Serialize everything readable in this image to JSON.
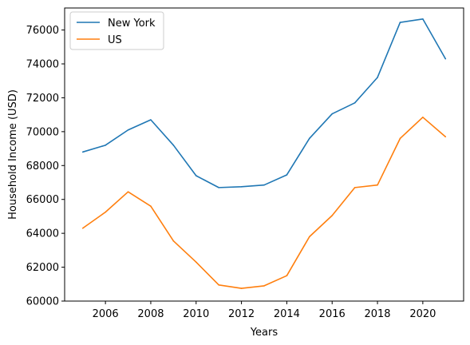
{
  "chart_data": {
    "type": "line",
    "title": "",
    "xlabel": "Years",
    "ylabel": "Household Income (USD)",
    "x": [
      2005,
      2006,
      2007,
      2008,
      2009,
      2010,
      2011,
      2012,
      2013,
      2014,
      2015,
      2016,
      2017,
      2018,
      2019,
      2020,
      2021
    ],
    "xlim": [
      2004.2,
      2021.8
    ],
    "ylim": [
      60000,
      77300
    ],
    "xticks": [
      2006,
      2008,
      2010,
      2012,
      2014,
      2016,
      2018,
      2020
    ],
    "yticks": [
      60000,
      62000,
      64000,
      66000,
      68000,
      70000,
      72000,
      74000,
      76000
    ],
    "grid": false,
    "legend_position": "top-left",
    "series": [
      {
        "name": "New York",
        "color": "#1f77b4",
        "values": [
          68800,
          69200,
          70100,
          70700,
          69200,
          67400,
          66700,
          66750,
          66850,
          67450,
          69600,
          71050,
          71700,
          73200,
          76450,
          76650,
          74300
        ]
      },
      {
        "name": "US",
        "color": "#ff7f0e",
        "values": [
          64300,
          65250,
          66450,
          65600,
          63550,
          62300,
          60950,
          60750,
          60900,
          61500,
          63800,
          65050,
          66700,
          66850,
          69600,
          70850,
          69700
        ]
      }
    ]
  }
}
